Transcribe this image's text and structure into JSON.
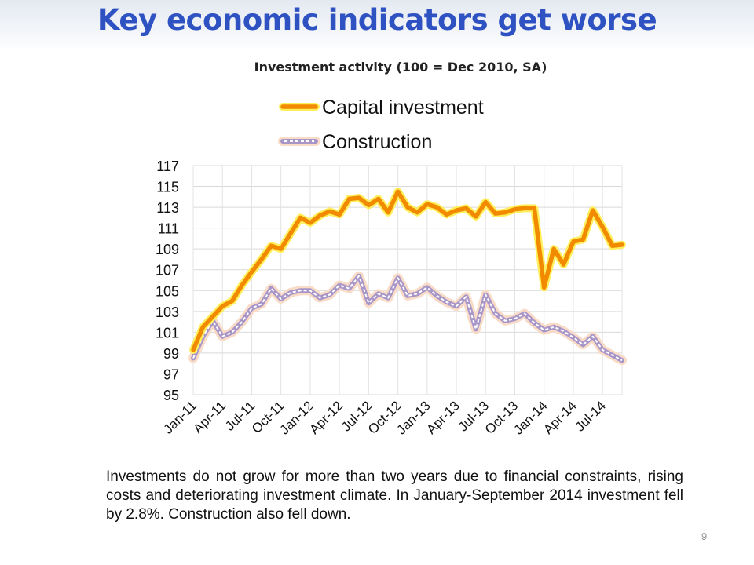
{
  "slide": {
    "title": "Key economic indicators get worse",
    "caption": "Investments do not grow for more than two years due to financial constraints, rising costs and deteriorating investment climate. In January-September 2014 investment fell by 2.8%. Construction also fell down.",
    "page_number": "9"
  },
  "chart_data": {
    "type": "line",
    "title": "Investment activity (100 = Dec 2010, SA)",
    "xlabel": "",
    "ylabel": "",
    "ylim": [
      95,
      117
    ],
    "yticks": [
      95,
      97,
      99,
      101,
      103,
      105,
      107,
      109,
      111,
      113,
      115,
      117
    ],
    "grid": true,
    "legend": "top",
    "x": [
      "Jan-11",
      "Feb-11",
      "Mar-11",
      "Apr-11",
      "May-11",
      "Jun-11",
      "Jul-11",
      "Aug-11",
      "Sep-11",
      "Oct-11",
      "Nov-11",
      "Dec-11",
      "Jan-12",
      "Feb-12",
      "Mar-12",
      "Apr-12",
      "May-12",
      "Jun-12",
      "Jul-12",
      "Aug-12",
      "Sep-12",
      "Oct-12",
      "Nov-12",
      "Dec-12",
      "Jan-13",
      "Feb-13",
      "Mar-13",
      "Apr-13",
      "May-13",
      "Jun-13",
      "Jul-13",
      "Aug-13",
      "Sep-13",
      "Oct-13",
      "Nov-13",
      "Dec-13",
      "Jan-14",
      "Feb-14",
      "Mar-14",
      "Apr-14",
      "May-14",
      "Jun-14",
      "Jul-14",
      "Aug-14",
      "Sep-14"
    ],
    "xtick_labels": [
      "Jan-11",
      "Apr-11",
      "Jul-11",
      "Oct-11",
      "Jan-12",
      "Apr-12",
      "Jul-12",
      "Oct-12",
      "Jan-13",
      "Apr-13",
      "Jul-13",
      "Oct-13",
      "Jan-14",
      "Apr-14",
      "Jul-14"
    ],
    "series": [
      {
        "name": "Capital investment",
        "color": "#f28a00",
        "values": [
          99.3,
          101.5,
          102.5,
          103.5,
          104.0,
          105.5,
          106.8,
          108.0,
          109.3,
          109.0,
          110.5,
          112.0,
          111.5,
          112.2,
          112.6,
          112.3,
          113.8,
          113.9,
          113.2,
          113.8,
          112.5,
          114.5,
          113.0,
          112.5,
          113.3,
          113.0,
          112.3,
          112.7,
          112.9,
          112.1,
          113.5,
          112.4,
          112.5,
          112.8,
          112.9,
          112.9,
          105.3,
          109.0,
          107.5,
          109.7,
          109.9,
          112.7,
          111.1,
          109.3,
          109.4
        ]
      },
      {
        "name": "Construction",
        "color": "#a896c8",
        "values": [
          98.5,
          100.6,
          102.1,
          100.6,
          101.0,
          102.0,
          103.3,
          103.7,
          105.2,
          104.2,
          104.8,
          105.0,
          105.0,
          104.3,
          104.6,
          105.5,
          105.2,
          106.4,
          103.8,
          104.7,
          104.3,
          106.2,
          104.5,
          104.7,
          105.3,
          104.5,
          103.9,
          103.5,
          104.4,
          101.3,
          104.6,
          102.8,
          102.1,
          102.3,
          102.8,
          101.9,
          101.2,
          101.5,
          101.1,
          100.5,
          99.8,
          100.6,
          99.3,
          98.8,
          98.3
        ]
      }
    ]
  }
}
